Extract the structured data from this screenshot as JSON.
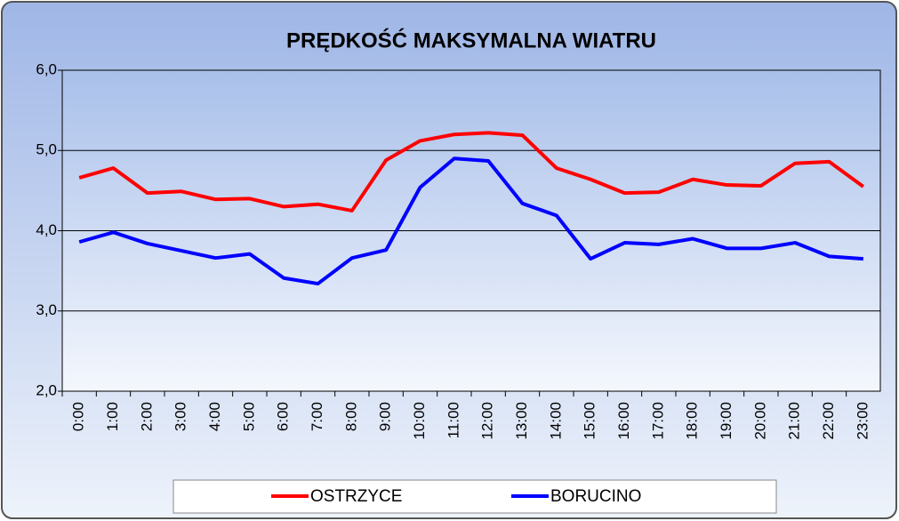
{
  "chart_data": {
    "type": "line",
    "title": "PRĘDKOŚĆ MAKSYMALNA WIATRU",
    "categories": [
      "0:00",
      "1:00",
      "2:00",
      "3:00",
      "4:00",
      "5:00",
      "6:00",
      "7:00",
      "8:00",
      "9:00",
      "10:00",
      "11:00",
      "12:00",
      "13:00",
      "14:00",
      "15:00",
      "16:00",
      "17:00",
      "18:00",
      "19:00",
      "20:00",
      "21:00",
      "22:00",
      "23:00"
    ],
    "series": [
      {
        "name": "OSTRZYCE",
        "color": "#ff0000",
        "values": [
          4.66,
          4.78,
          4.47,
          4.49,
          4.39,
          4.4,
          4.3,
          4.33,
          4.25,
          4.88,
          5.12,
          5.2,
          5.22,
          5.19,
          4.78,
          4.64,
          4.47,
          4.48,
          4.64,
          4.57,
          4.56,
          4.84,
          4.86,
          4.55
        ]
      },
      {
        "name": "BORUCINO",
        "color": "#0000ff",
        "values": [
          3.86,
          3.98,
          3.84,
          3.75,
          3.66,
          3.71,
          3.41,
          3.34,
          3.66,
          3.76,
          4.54,
          4.9,
          4.87,
          4.34,
          4.19,
          3.65,
          3.85,
          3.83,
          3.9,
          3.78,
          3.78,
          3.85,
          3.68,
          3.65
        ]
      }
    ],
    "ylim": [
      2,
      6
    ],
    "yticks": [
      {
        "value": 2,
        "label": "2,0"
      },
      {
        "value": 3,
        "label": "3,0"
      },
      {
        "value": 4,
        "label": "4,0"
      },
      {
        "value": 5,
        "label": "5,0"
      },
      {
        "value": 6,
        "label": "6,0"
      }
    ],
    "grid": true,
    "legend": "bottom"
  }
}
